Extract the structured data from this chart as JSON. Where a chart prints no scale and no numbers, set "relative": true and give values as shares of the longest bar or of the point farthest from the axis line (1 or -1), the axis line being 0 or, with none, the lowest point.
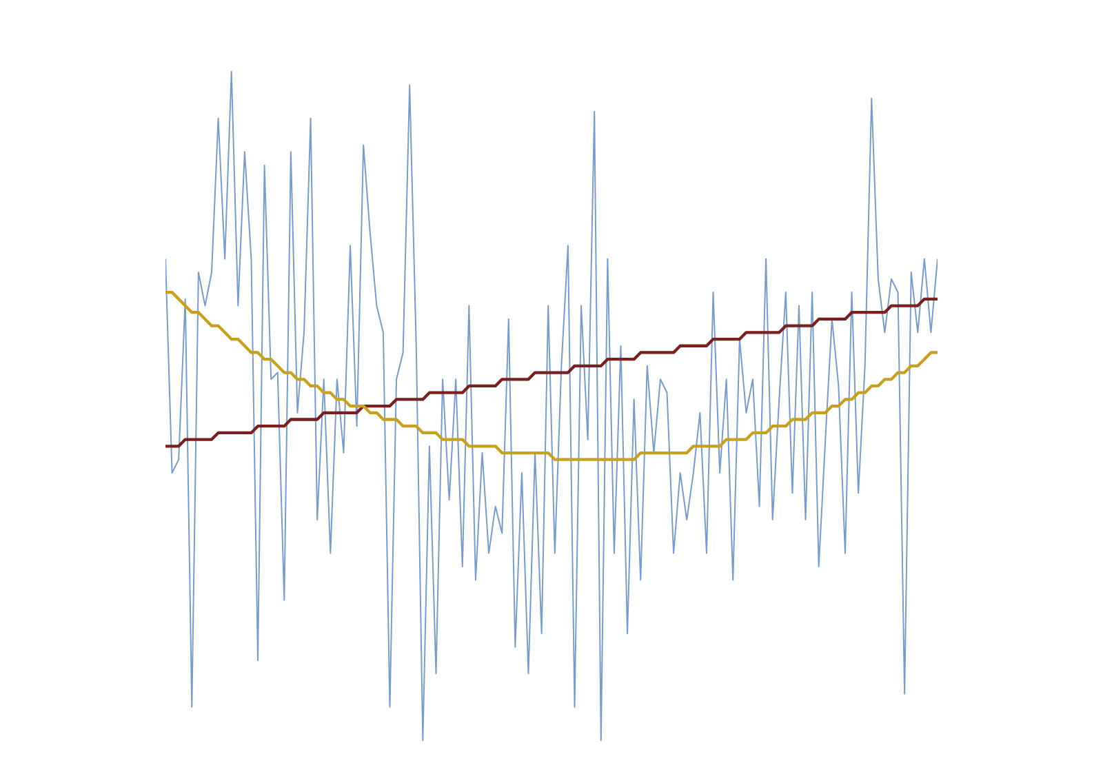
{
  "chart_data": {
    "type": "line",
    "relative": true,
    "marker": "none",
    "categories": [
      null,
      null,
      null,
      null,
      null,
      null,
      null,
      null,
      null,
      null,
      null,
      null,
      null,
      null,
      null,
      null,
      null,
      null,
      null,
      null,
      null,
      null,
      null,
      null,
      null,
      null,
      null,
      null,
      null,
      null,
      null,
      null,
      null,
      null,
      null,
      null,
      null,
      null,
      null,
      null,
      null,
      null,
      null,
      null,
      null,
      null,
      null,
      null,
      null,
      null,
      null,
      null,
      null,
      null,
      null,
      null,
      null,
      null,
      null,
      null,
      null,
      null,
      null,
      null,
      null,
      null,
      null,
      null,
      null,
      null,
      null,
      null,
      null,
      null,
      null,
      null,
      null,
      null,
      null,
      null,
      null,
      null,
      null,
      null,
      null,
      null,
      null,
      null,
      null,
      null,
      null,
      null,
      null,
      null,
      null,
      null,
      null,
      null,
      null,
      null,
      null,
      null,
      null,
      null,
      null,
      null,
      null,
      null,
      null,
      null,
      null,
      null,
      null,
      null,
      null,
      null,
      null,
      null
    ],
    "series": [
      {
        "color": "#7a9cc6",
        "values": [
          0.72,
          0.4,
          0.42,
          0.66,
          0.05,
          0.7,
          0.65,
          0.7,
          0.93,
          0.72,
          1.0,
          0.65,
          0.88,
          0.72,
          0.12,
          0.86,
          0.54,
          0.55,
          0.21,
          0.88,
          0.49,
          0.61,
          0.93,
          0.33,
          0.54,
          0.28,
          0.54,
          0.43,
          0.74,
          0.47,
          0.89,
          0.76,
          0.65,
          0.61,
          0.05,
          0.54,
          0.58,
          0.98,
          0.59,
          0.0,
          0.44,
          0.1,
          0.54,
          0.36,
          0.54,
          0.26,
          0.65,
          0.24,
          0.43,
          0.28,
          0.35,
          0.31,
          0.63,
          0.14,
          0.4,
          0.1,
          0.43,
          0.16,
          0.65,
          0.28,
          0.56,
          0.74,
          0.05,
          0.65,
          0.45,
          0.94,
          0.0,
          0.72,
          0.28,
          0.59,
          0.16,
          0.51,
          0.24,
          0.56,
          0.43,
          0.54,
          0.52,
          0.28,
          0.4,
          0.33,
          0.4,
          0.49,
          0.28,
          0.67,
          0.4,
          0.54,
          0.24,
          0.6,
          0.49,
          0.54,
          0.35,
          0.72,
          0.33,
          0.51,
          0.67,
          0.37,
          0.65,
          0.33,
          0.67,
          0.26,
          0.45,
          0.63,
          0.53,
          0.28,
          0.67,
          0.37,
          0.56,
          0.96,
          0.69,
          0.61,
          0.69,
          0.67,
          0.07,
          0.7,
          0.61,
          0.72,
          0.61,
          0.72
        ]
      },
      {
        "color": "#7a1f1f",
        "values": [
          0.44,
          0.44,
          0.44,
          0.45,
          0.45,
          0.45,
          0.45,
          0.45,
          0.46,
          0.46,
          0.46,
          0.46,
          0.46,
          0.46,
          0.47,
          0.47,
          0.47,
          0.47,
          0.47,
          0.48,
          0.48,
          0.48,
          0.48,
          0.48,
          0.49,
          0.49,
          0.49,
          0.49,
          0.49,
          0.49,
          0.5,
          0.5,
          0.5,
          0.5,
          0.5,
          0.51,
          0.51,
          0.51,
          0.51,
          0.51,
          0.52,
          0.52,
          0.52,
          0.52,
          0.52,
          0.52,
          0.53,
          0.53,
          0.53,
          0.53,
          0.53,
          0.54,
          0.54,
          0.54,
          0.54,
          0.54,
          0.55,
          0.55,
          0.55,
          0.55,
          0.55,
          0.55,
          0.56,
          0.56,
          0.56,
          0.56,
          0.56,
          0.57,
          0.57,
          0.57,
          0.57,
          0.57,
          0.58,
          0.58,
          0.58,
          0.58,
          0.58,
          0.58,
          0.59,
          0.59,
          0.59,
          0.59,
          0.59,
          0.6,
          0.6,
          0.6,
          0.6,
          0.6,
          0.61,
          0.61,
          0.61,
          0.61,
          0.61,
          0.61,
          0.62,
          0.62,
          0.62,
          0.62,
          0.62,
          0.63,
          0.63,
          0.63,
          0.63,
          0.63,
          0.64,
          0.64,
          0.64,
          0.64,
          0.64,
          0.64,
          0.65,
          0.65,
          0.65,
          0.65,
          0.65,
          0.66,
          0.66,
          0.66
        ]
      },
      {
        "color": "#c8a020",
        "values": [
          0.67,
          0.67,
          0.66,
          0.65,
          0.64,
          0.64,
          0.63,
          0.62,
          0.62,
          0.61,
          0.6,
          0.6,
          0.59,
          0.58,
          0.58,
          0.57,
          0.57,
          0.56,
          0.55,
          0.55,
          0.54,
          0.54,
          0.53,
          0.53,
          0.52,
          0.52,
          0.51,
          0.51,
          0.5,
          0.5,
          0.5,
          0.49,
          0.49,
          0.48,
          0.48,
          0.48,
          0.47,
          0.47,
          0.47,
          0.46,
          0.46,
          0.46,
          0.45,
          0.45,
          0.45,
          0.45,
          0.44,
          0.44,
          0.44,
          0.44,
          0.44,
          0.43,
          0.43,
          0.43,
          0.43,
          0.43,
          0.43,
          0.43,
          0.43,
          0.42,
          0.42,
          0.42,
          0.42,
          0.42,
          0.42,
          0.42,
          0.42,
          0.42,
          0.42,
          0.42,
          0.42,
          0.42,
          0.43,
          0.43,
          0.43,
          0.43,
          0.43,
          0.43,
          0.43,
          0.43,
          0.44,
          0.44,
          0.44,
          0.44,
          0.44,
          0.45,
          0.45,
          0.45,
          0.45,
          0.46,
          0.46,
          0.46,
          0.47,
          0.47,
          0.47,
          0.48,
          0.48,
          0.48,
          0.49,
          0.49,
          0.49,
          0.5,
          0.5,
          0.51,
          0.51,
          0.52,
          0.52,
          0.53,
          0.53,
          0.54,
          0.54,
          0.55,
          0.55,
          0.56,
          0.56,
          0.57,
          0.58,
          0.58
        ]
      }
    ]
  }
}
